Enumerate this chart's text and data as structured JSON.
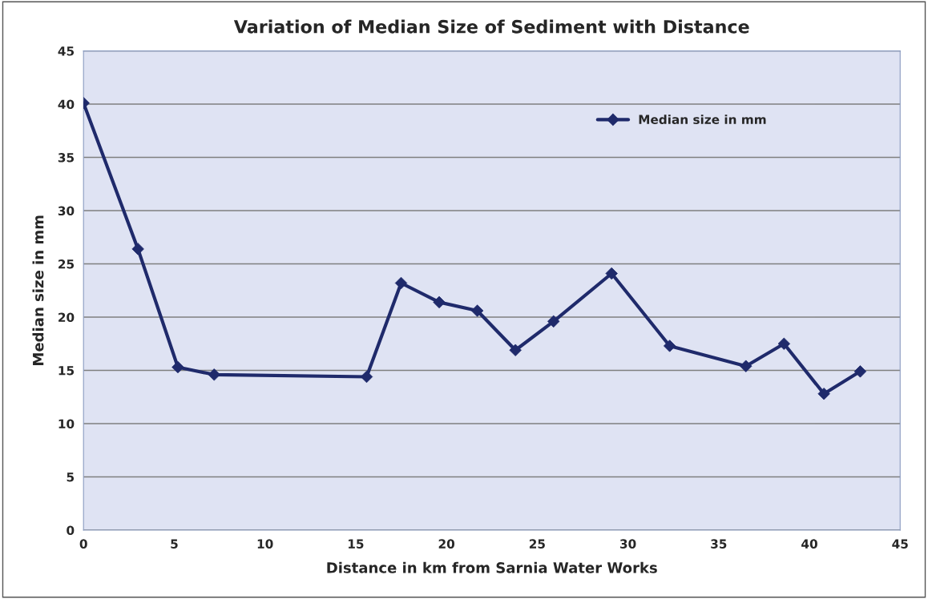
{
  "chart_data": {
    "type": "line",
    "title": "Variation of Median Size of Sediment with Distance",
    "xlabel": "Distance in km from Sarnia Water Works",
    "ylabel": "Median size in mm",
    "x": [
      0,
      3.0,
      5.2,
      7.2,
      15.6,
      17.5,
      19.6,
      21.7,
      23.8,
      25.9,
      29.1,
      32.3,
      36.5,
      38.6,
      40.8,
      42.8
    ],
    "series": [
      {
        "name": "Median size in mm",
        "color": "#1f2a6b",
        "values": [
          40.1,
          26.4,
          15.3,
          14.6,
          14.4,
          23.2,
          21.4,
          20.6,
          16.9,
          19.6,
          24.1,
          17.3,
          15.4,
          17.5,
          12.8,
          14.9
        ]
      }
    ],
    "xlim": [
      0,
      45
    ],
    "xticks": [
      0,
      5,
      10,
      15,
      20,
      25,
      30,
      35,
      40,
      45
    ],
    "ylim": [
      0,
      45
    ],
    "yticks": [
      0,
      5,
      10,
      15,
      20,
      25,
      30,
      35,
      40,
      45
    ],
    "grid": "y",
    "legend": "top right",
    "marker": "diamond",
    "line_style": "solid"
  }
}
